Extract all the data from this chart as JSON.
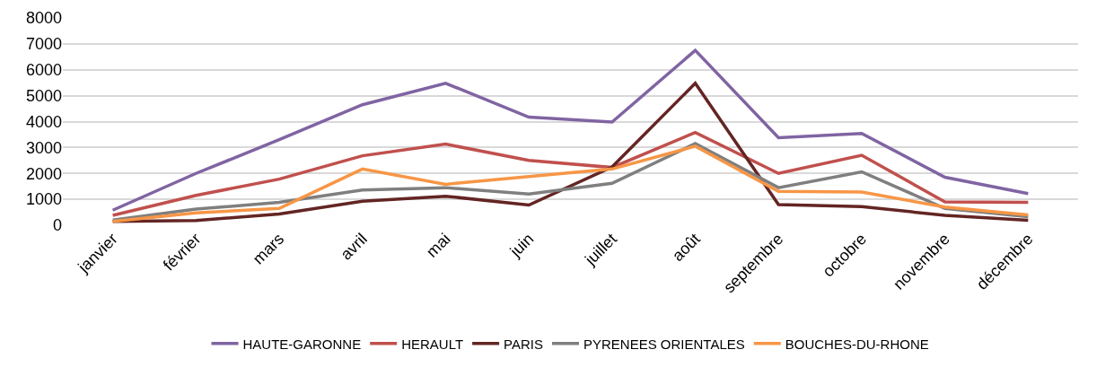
{
  "chart_data": {
    "type": "line",
    "categories": [
      "janvier",
      "février",
      "mars",
      "avril",
      "mai",
      "juin",
      "juillet",
      "août",
      "septembre",
      "octobre",
      "novembre",
      "décembre"
    ],
    "series": [
      {
        "name": "HAUTE-GARONNE",
        "color": "#8064a2",
        "values": [
          580,
          2000,
          3300,
          4650,
          5480,
          4170,
          3980,
          6750,
          3380,
          3540,
          1850,
          1220
        ]
      },
      {
        "name": "HERAULT",
        "color": "#c0504d",
        "values": [
          380,
          1150,
          1780,
          2680,
          3130,
          2500,
          2230,
          3580,
          2000,
          2700,
          900,
          880
        ]
      },
      {
        "name": "PARIS",
        "color": "#632523",
        "values": [
          150,
          180,
          430,
          930,
          1120,
          780,
          2250,
          5480,
          800,
          720,
          380,
          190
        ]
      },
      {
        "name": "PYRENEES ORIENTALES",
        "color": "#7f7f7f",
        "values": [
          200,
          620,
          880,
          1360,
          1450,
          1200,
          1620,
          3150,
          1450,
          2060,
          650,
          330
        ]
      },
      {
        "name": "BOUCHES-DU-RHONE",
        "color": "#f79646",
        "values": [
          150,
          480,
          650,
          2170,
          1580,
          1880,
          2170,
          3050,
          1310,
          1280,
          700,
          400
        ]
      }
    ],
    "ylim": [
      0,
      8000
    ],
    "yticks": [
      0,
      1000,
      2000,
      3000,
      4000,
      5000,
      6000,
      7000,
      8000
    ],
    "grid": "y",
    "legend": "bottom",
    "marker": "none",
    "line_style": "solid"
  }
}
